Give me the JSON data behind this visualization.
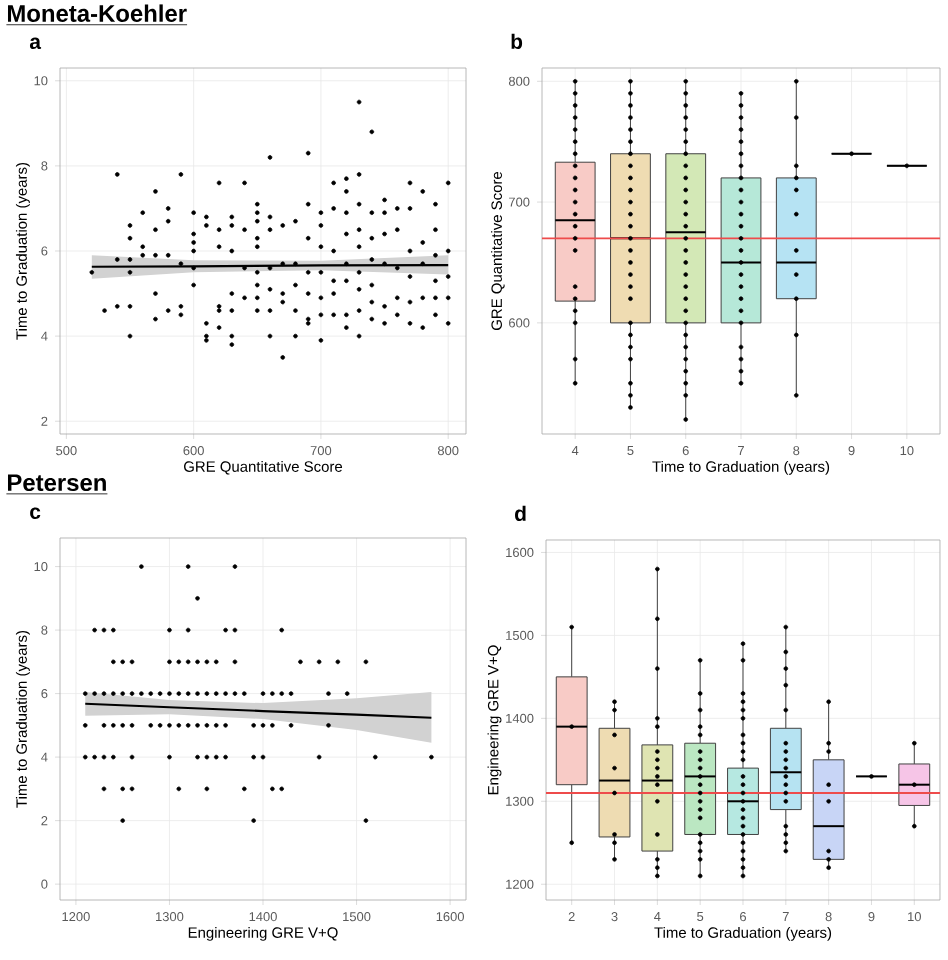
{
  "chart_data": [
    {
      "type": "scatter",
      "title": "a",
      "annotations": [
        "Moneta-Koehler"
      ],
      "xlabel": "GRE Quantitative Score",
      "ylabel": "Time to Graduation (years)",
      "xlim": [
        495,
        814
      ],
      "ylim": [
        1.7,
        10.3
      ],
      "xticks": [
        500,
        600,
        700,
        800
      ],
      "yticks": [
        2,
        4,
        6,
        8,
        10
      ],
      "grid": true,
      "series": [
        {
          "type": "scatter",
          "color": "#000000",
          "marker": "circle",
          "x": [
            520,
            530,
            540,
            540,
            540,
            550,
            550,
            550,
            550,
            550,
            550,
            560,
            560,
            560,
            570,
            570,
            570,
            570,
            570,
            580,
            580,
            580,
            580,
            590,
            590,
            590,
            590,
            600,
            600,
            600,
            600,
            600,
            600,
            610,
            610,
            610,
            610,
            610,
            620,
            620,
            620,
            620,
            620,
            620,
            630,
            630,
            630,
            630,
            630,
            630,
            630,
            640,
            640,
            640,
            640,
            650,
            650,
            650,
            650,
            650,
            650,
            650,
            650,
            650,
            660,
            660,
            660,
            660,
            660,
            660,
            660,
            670,
            670,
            670,
            670,
            670,
            680,
            680,
            680,
            680,
            680,
            690,
            690,
            690,
            690,
            690,
            690,
            690,
            700,
            700,
            700,
            700,
            700,
            700,
            700,
            710,
            710,
            710,
            710,
            710,
            710,
            720,
            720,
            720,
            720,
            720,
            720,
            720,
            720,
            730,
            730,
            730,
            730,
            730,
            730,
            730,
            730,
            730,
            740,
            740,
            740,
            740,
            740,
            740,
            740,
            750,
            750,
            750,
            750,
            750,
            750,
            760,
            760,
            760,
            760,
            760,
            770,
            770,
            770,
            770,
            770,
            770,
            780,
            780,
            780,
            780,
            780,
            790,
            790,
            790,
            790,
            790,
            790,
            800,
            800,
            800,
            800,
            800
          ],
          "values": [
            5.5,
            4.6,
            7.8,
            5.8,
            4.7,
            6.6,
            6.3,
            5.8,
            5.5,
            4.7,
            4.0,
            6.9,
            6.1,
            5.9,
            7.4,
            6.5,
            5.9,
            5.0,
            4.4,
            7.0,
            6.7,
            5.9,
            4.6,
            7.8,
            5.7,
            4.7,
            4.5,
            6.9,
            6.4,
            6.2,
            6.0,
            5.6,
            5.2,
            6.8,
            6.6,
            4.3,
            4.0,
            3.9,
            7.6,
            6.5,
            6.1,
            4.7,
            4.6,
            4.2,
            6.8,
            6.6,
            6.0,
            5.0,
            4.6,
            4.0,
            3.8,
            7.6,
            6.5,
            5.6,
            4.9,
            7.1,
            6.9,
            6.7,
            6.3,
            6.1,
            5.5,
            5.2,
            4.9,
            4.6,
            8.2,
            6.8,
            6.5,
            5.6,
            5.1,
            4.6,
            4.0,
            6.6,
            5.7,
            5.0,
            4.8,
            3.5,
            6.7,
            5.7,
            5.2,
            4.6,
            4.0,
            8.3,
            7.1,
            6.3,
            5.5,
            5.0,
            4.4,
            4.3,
            6.9,
            6.6,
            6.1,
            5.5,
            4.9,
            4.5,
            3.9,
            7.6,
            7.0,
            6.0,
            5.3,
            5.0,
            4.5,
            7.7,
            7.4,
            6.9,
            6.4,
            5.7,
            5.3,
            4.5,
            4.2,
            9.5,
            7.8,
            7.1,
            6.5,
            6.1,
            5.5,
            5.1,
            4.6,
            4.0,
            8.8,
            6.9,
            6.3,
            5.8,
            5.2,
            4.8,
            4.4,
            7.2,
            6.9,
            6.4,
            5.7,
            4.7,
            4.3,
            7.0,
            6.5,
            5.6,
            4.9,
            4.5,
            7.6,
            7.0,
            6.0,
            5.4,
            4.8,
            4.3,
            7.4,
            6.2,
            5.7,
            4.9,
            4.2,
            7.1,
            6.5,
            5.9,
            5.3,
            4.9,
            4.5,
            7.6,
            6.0,
            5.4,
            4.9,
            4.3
          ]
        },
        {
          "type": "line",
          "color": "#000000",
          "x": [
            520,
            600,
            700,
            800
          ],
          "values": [
            5.63,
            5.64,
            5.66,
            5.67
          ],
          "lower": [
            5.35,
            5.5,
            5.55,
            5.45
          ],
          "upper": [
            5.9,
            5.78,
            5.77,
            5.9
          ]
        }
      ]
    },
    {
      "type": "box",
      "title": "b",
      "xlabel": "Time to Graduation (years)",
      "ylabel": "GRE Quantitative Score",
      "categories": [
        "4",
        "5",
        "6",
        "7",
        "8",
        "9",
        "10"
      ],
      "ylim": [
        508,
        811
      ],
      "yticks": [
        600,
        700,
        800
      ],
      "grid": true,
      "colors": [
        "#f8cbc6",
        "#efdcb2",
        "#d3e8b6",
        "#b6e8d8",
        "#b6e3f3",
        null,
        null
      ],
      "boxes": [
        {
          "low": 550,
          "q1": 618,
          "median": 685,
          "q3": 733,
          "high": 800
        },
        {
          "low": 530,
          "q1": 600,
          "median": 670,
          "q3": 740,
          "high": 800
        },
        {
          "low": 520,
          "q1": 600,
          "median": 675,
          "q3": 740,
          "high": 800
        },
        {
          "low": 550,
          "q1": 600,
          "median": 650,
          "q3": 720,
          "high": 790
        },
        {
          "low": 540,
          "q1": 620,
          "median": 650,
          "q3": 720,
          "high": 800
        },
        {
          "low": 740,
          "q1": 740,
          "median": 740,
          "q3": 740,
          "high": 740
        },
        {
          "low": 730,
          "q1": 730,
          "median": 730,
          "q3": 730,
          "high": 730
        }
      ],
      "ref_lines": [
        {
          "axis": "y",
          "value": 670,
          "color": "#ee4b4b"
        }
      ],
      "series": [
        {
          "type": "scatter",
          "color": "#000000",
          "marker": "circle",
          "x": [
            "4",
            "4",
            "4",
            "4",
            "4",
            "4",
            "4",
            "4",
            "4",
            "4",
            "4",
            "4",
            "4",
            "4",
            "4",
            "4",
            "4",
            "4",
            "4",
            "4",
            "4",
            "5",
            "5",
            "5",
            "5",
            "5",
            "5",
            "5",
            "5",
            "5",
            "5",
            "5",
            "5",
            "5",
            "5",
            "5",
            "5",
            "5",
            "5",
            "5",
            "5",
            "5",
            "5",
            "5",
            "5",
            "5",
            "5",
            "6",
            "6",
            "6",
            "6",
            "6",
            "6",
            "6",
            "6",
            "6",
            "6",
            "6",
            "6",
            "6",
            "6",
            "6",
            "6",
            "6",
            "6",
            "6",
            "6",
            "6",
            "6",
            "6",
            "6",
            "6",
            "6",
            "6",
            "6",
            "7",
            "7",
            "7",
            "7",
            "7",
            "7",
            "7",
            "7",
            "7",
            "7",
            "7",
            "7",
            "7",
            "7",
            "7",
            "7",
            "7",
            "7",
            "7",
            "7",
            "7",
            "7",
            "7",
            "7",
            "8",
            "8",
            "8",
            "8",
            "8",
            "8",
            "8",
            "8",
            "8",
            "8",
            "8",
            "9",
            "10"
          ],
          "values": [
            550,
            570,
            600,
            610,
            620,
            630,
            660,
            670,
            680,
            690,
            700,
            710,
            720,
            730,
            740,
            750,
            760,
            770,
            780,
            790,
            800,
            530,
            540,
            550,
            570,
            580,
            590,
            600,
            620,
            630,
            640,
            650,
            660,
            670,
            680,
            690,
            700,
            710,
            720,
            730,
            740,
            750,
            760,
            770,
            780,
            790,
            800,
            520,
            540,
            550,
            560,
            570,
            580,
            590,
            600,
            610,
            620,
            630,
            640,
            650,
            660,
            670,
            680,
            690,
            700,
            710,
            720,
            730,
            740,
            750,
            760,
            770,
            780,
            790,
            800,
            550,
            560,
            570,
            580,
            600,
            610,
            620,
            630,
            640,
            650,
            660,
            670,
            680,
            690,
            700,
            710,
            720,
            730,
            740,
            750,
            760,
            770,
            780,
            790,
            540,
            590,
            620,
            640,
            660,
            690,
            710,
            720,
            730,
            770,
            800,
            740,
            730
          ]
        }
      ]
    },
    {
      "type": "scatter",
      "title": "c",
      "annotations": [
        "Petersen"
      ],
      "xlabel": "Engineering GRE V+Q",
      "ylabel": "Time to Graduation (years)",
      "xlim": [
        1183,
        1617
      ],
      "ylim": [
        -0.5,
        10.9
      ],
      "xticks": [
        1200,
        1300,
        1400,
        1500,
        1600
      ],
      "yticks": [
        0,
        2,
        4,
        6,
        8,
        10
      ],
      "grid": true,
      "series": [
        {
          "type": "scatter",
          "color": "#000000",
          "marker": "circle",
          "x": [
            1270,
            1320,
            1370,
            1330,
            1220,
            1230,
            1240,
            1300,
            1320,
            1360,
            1370,
            1420,
            1240,
            1250,
            1260,
            1300,
            1310,
            1320,
            1330,
            1340,
            1350,
            1370,
            1440,
            1460,
            1480,
            1510,
            1210,
            1220,
            1230,
            1240,
            1250,
            1260,
            1270,
            1280,
            1290,
            1300,
            1310,
            1320,
            1330,
            1340,
            1350,
            1360,
            1370,
            1380,
            1400,
            1410,
            1420,
            1430,
            1470,
            1490,
            1210,
            1230,
            1240,
            1250,
            1260,
            1280,
            1290,
            1300,
            1310,
            1320,
            1330,
            1340,
            1350,
            1360,
            1390,
            1400,
            1410,
            1430,
            1470,
            1210,
            1220,
            1230,
            1240,
            1260,
            1300,
            1330,
            1340,
            1350,
            1360,
            1390,
            1400,
            1460,
            1520,
            1580,
            1230,
            1250,
            1260,
            1310,
            1340,
            1380,
            1410,
            1420,
            1250,
            1390,
            1510
          ],
          "values": [
            10,
            10,
            10,
            9,
            8,
            8,
            8,
            8,
            8,
            8,
            8,
            8,
            7,
            7,
            7,
            7,
            7,
            7,
            7,
            7,
            7,
            7,
            7,
            7,
            7,
            7,
            6,
            6,
            6,
            6,
            6,
            6,
            6,
            6,
            6,
            6,
            6,
            6,
            6,
            6,
            6,
            6,
            6,
            6,
            6,
            6,
            6,
            6,
            6,
            6,
            5,
            5,
            5,
            5,
            5,
            5,
            5,
            5,
            5,
            5,
            5,
            5,
            5,
            5,
            5,
            5,
            5,
            5,
            5,
            4,
            4,
            4,
            4,
            4,
            4,
            4,
            4,
            4,
            4,
            4,
            4,
            4,
            4,
            4,
            3,
            3,
            3,
            3,
            3,
            3,
            3,
            3,
            2,
            2,
            2
          ]
        },
        {
          "type": "line",
          "color": "#000000",
          "x": [
            1210,
            1300,
            1400,
            1500,
            1580
          ],
          "values": [
            5.68,
            5.57,
            5.45,
            5.34,
            5.24
          ],
          "lower": [
            5.3,
            5.35,
            5.2,
            4.85,
            4.45
          ],
          "upper": [
            6.05,
            5.8,
            5.7,
            5.85,
            6.05
          ]
        }
      ]
    },
    {
      "type": "box",
      "title": "d",
      "xlabel": "Time to Graduation (years)",
      "ylabel": "Engineering GRE V+Q",
      "categories": [
        "2",
        "3",
        "4",
        "5",
        "6",
        "7",
        "8",
        "9",
        "10"
      ],
      "ylim": [
        1181,
        1615
      ],
      "yticks": [
        1200,
        1300,
        1400,
        1500,
        1600
      ],
      "grid": true,
      "colors": [
        "#f8cbc6",
        "#eedcb2",
        "#dfe4b2",
        "#bbe7c2",
        "#b6e8e1",
        "#b6e3f2",
        "#c8d5f6",
        null,
        "#f6c5e7"
      ],
      "boxes": [
        {
          "low": 1250,
          "q1": 1320,
          "median": 1390,
          "q3": 1450,
          "high": 1510
        },
        {
          "low": 1230,
          "q1": 1257,
          "median": 1325,
          "q3": 1388,
          "high": 1420
        },
        {
          "low": 1210,
          "q1": 1240,
          "median": 1325,
          "q3": 1368,
          "high": 1580
        },
        {
          "low": 1210,
          "q1": 1260,
          "median": 1330,
          "q3": 1370,
          "high": 1470
        },
        {
          "low": 1210,
          "q1": 1260,
          "median": 1300,
          "q3": 1340,
          "high": 1490
        },
        {
          "low": 1240,
          "q1": 1290,
          "median": 1335,
          "q3": 1388,
          "high": 1510
        },
        {
          "low": 1220,
          "q1": 1230,
          "median": 1270,
          "q3": 1350,
          "high": 1420
        },
        {
          "low": 1330,
          "q1": 1330,
          "median": 1330,
          "q3": 1330,
          "high": 1330
        },
        {
          "low": 1270,
          "q1": 1295,
          "median": 1320,
          "q3": 1345,
          "high": 1370
        }
      ],
      "ref_lines": [
        {
          "axis": "y",
          "value": 1310,
          "color": "#ee4b4b"
        }
      ],
      "series": [
        {
          "type": "scatter",
          "color": "#000000",
          "marker": "circle",
          "x": [
            "2",
            "2",
            "2",
            "3",
            "3",
            "3",
            "3",
            "3",
            "3",
            "3",
            "3",
            "4",
            "4",
            "4",
            "4",
            "4",
            "4",
            "4",
            "4",
            "4",
            "4",
            "4",
            "4",
            "4",
            "4",
            "4",
            "5",
            "5",
            "5",
            "5",
            "5",
            "5",
            "5",
            "5",
            "5",
            "5",
            "5",
            "5",
            "5",
            "5",
            "5",
            "5",
            "5",
            "5",
            "5",
            "6",
            "6",
            "6",
            "6",
            "6",
            "6",
            "6",
            "6",
            "6",
            "6",
            "6",
            "6",
            "6",
            "6",
            "6",
            "6",
            "6",
            "6",
            "6",
            "6",
            "6",
            "6",
            "6",
            "7",
            "7",
            "7",
            "7",
            "7",
            "7",
            "7",
            "7",
            "7",
            "7",
            "7",
            "7",
            "7",
            "7",
            "7",
            "7",
            "7",
            "8",
            "8",
            "8",
            "8",
            "8",
            "8",
            "8",
            "8",
            "9",
            "10",
            "10",
            "10"
          ],
          "values": [
            1250,
            1390,
            1510,
            1230,
            1250,
            1260,
            1310,
            1340,
            1380,
            1410,
            1420,
            1210,
            1220,
            1230,
            1260,
            1300,
            1320,
            1330,
            1340,
            1350,
            1360,
            1390,
            1400,
            1460,
            1520,
            1580,
            1210,
            1230,
            1240,
            1250,
            1260,
            1280,
            1290,
            1300,
            1310,
            1320,
            1330,
            1340,
            1350,
            1360,
            1380,
            1390,
            1410,
            1430,
            1470,
            1210,
            1220,
            1230,
            1240,
            1250,
            1260,
            1270,
            1280,
            1290,
            1300,
            1310,
            1320,
            1330,
            1350,
            1360,
            1370,
            1380,
            1400,
            1410,
            1420,
            1430,
            1470,
            1490,
            1240,
            1250,
            1260,
            1270,
            1300,
            1310,
            1320,
            1330,
            1340,
            1350,
            1360,
            1370,
            1410,
            1440,
            1460,
            1480,
            1510,
            1220,
            1230,
            1240,
            1300,
            1320,
            1360,
            1370,
            1420,
            1330,
            1270,
            1320,
            1370
          ]
        }
      ]
    }
  ]
}
